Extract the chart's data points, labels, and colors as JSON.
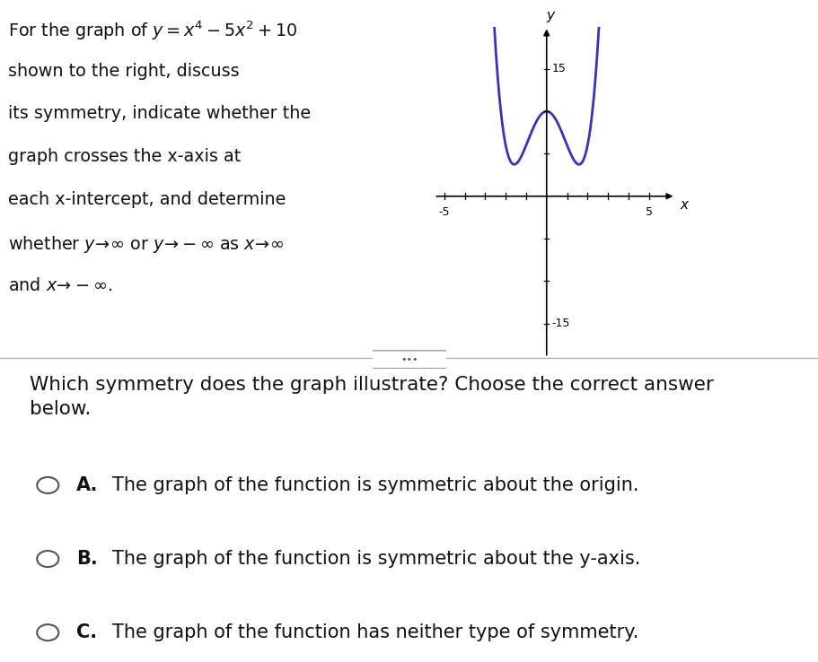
{
  "question_text": "Which symmetry does the graph illustrate? Choose the correct answer\nbelow.",
  "options": [
    {
      "label": "A.",
      "text": "The graph of the function is symmetric about the origin."
    },
    {
      "label": "B.",
      "text": "The graph of the function is symmetric about the y-axis."
    },
    {
      "label": "C.",
      "text": "The graph of the function has neither type of symmetry."
    }
  ],
  "curve_color": "#3333bb",
  "curve_linewidth": 2.0,
  "bg_color": "#ffffff",
  "text_color": "#111111"
}
